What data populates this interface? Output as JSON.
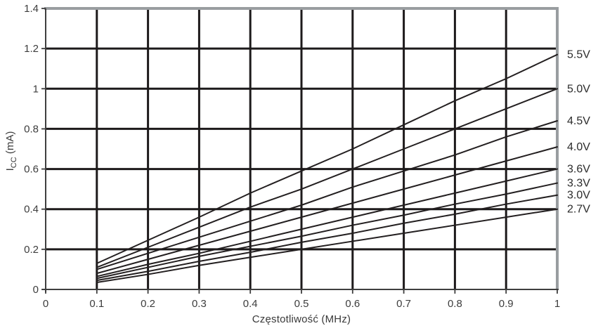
{
  "figure": {
    "x_axis_title": "Częstotliwość (MHz)",
    "y_axis_title": {
      "prefix": "I",
      "sub": "CC",
      "suffix": " (mA)"
    }
  },
  "chart_data": {
    "type": "line",
    "title": "",
    "xlabel": "Częstotliwość (MHz)",
    "ylabel": "Icc (mA)",
    "xlim": [
      0,
      1
    ],
    "ylim": [
      0,
      1.4
    ],
    "grid": true,
    "legend_position": "right edge, labels at line endpoints",
    "x_ticks": [
      0,
      0.1,
      0.2,
      0.3,
      0.4,
      0.5,
      0.6,
      0.7,
      0.8,
      0.9,
      1
    ],
    "x_tick_labels": [
      "0",
      "0.1",
      "0.2",
      "0.3",
      "0.4",
      "0.5",
      "0.6",
      "0.7",
      "0.8",
      "0.9",
      "1"
    ],
    "y_ticks": [
      0,
      0.2,
      0.4,
      0.6,
      0.8,
      1,
      1.2,
      1.4
    ],
    "y_tick_labels": [
      "0",
      "0.2",
      "0.4",
      "0.6",
      "0.8",
      "1",
      "1.2",
      "1.4"
    ],
    "x": [
      0.1,
      0.2,
      0.3,
      0.4,
      0.5,
      0.6,
      0.7,
      0.8,
      0.9,
      1.0
    ],
    "series": [
      {
        "name": "5.5V",
        "values": [
          0.13,
          0.245,
          0.36,
          0.48,
          0.59,
          0.7,
          0.82,
          0.94,
          1.05,
          1.17
        ]
      },
      {
        "name": "5.0V",
        "values": [
          0.11,
          0.21,
          0.31,
          0.41,
          0.5,
          0.6,
          0.7,
          0.8,
          0.9,
          1.0
        ]
      },
      {
        "name": "4.5V",
        "values": [
          0.1,
          0.18,
          0.26,
          0.34,
          0.42,
          0.51,
          0.59,
          0.67,
          0.76,
          0.84
        ]
      },
      {
        "name": "4.0V",
        "values": [
          0.08,
          0.15,
          0.22,
          0.29,
          0.36,
          0.43,
          0.5,
          0.57,
          0.64,
          0.71
        ]
      },
      {
        "name": "3.6V",
        "values": [
          0.065,
          0.125,
          0.18,
          0.24,
          0.3,
          0.36,
          0.42,
          0.48,
          0.54,
          0.6
        ]
      },
      {
        "name": "3.3V",
        "values": [
          0.055,
          0.11,
          0.165,
          0.215,
          0.265,
          0.32,
          0.37,
          0.425,
          0.475,
          0.53
        ]
      },
      {
        "name": "3.0V",
        "values": [
          0.045,
          0.09,
          0.14,
          0.185,
          0.235,
          0.28,
          0.33,
          0.375,
          0.425,
          0.47
        ]
      },
      {
        "name": "2.7V",
        "values": [
          0.035,
          0.075,
          0.12,
          0.16,
          0.2,
          0.24,
          0.28,
          0.32,
          0.36,
          0.4
        ]
      }
    ],
    "colors": {
      "line": "#231f20",
      "grid": "#1d1a1b",
      "axis": "#3f3f3f",
      "border": "#999da0",
      "text": "#3d3d3d",
      "background": "#ffffff"
    }
  }
}
